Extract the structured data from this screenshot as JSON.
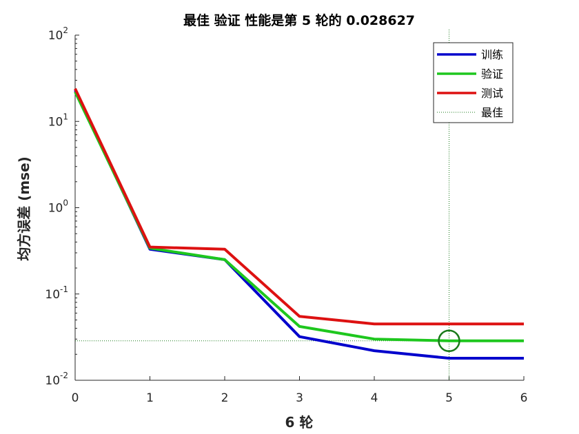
{
  "chart_data": {
    "type": "line",
    "title": "最佳 验证 性能是第 5 轮的 0.028627",
    "xlabel": "6 轮",
    "ylabel": "均方误差 (mse)",
    "xlim": [
      0,
      6
    ],
    "ylim": [
      0.01,
      100
    ],
    "yscale": "log",
    "grid": false,
    "legend_position": "top-right",
    "x": [
      0,
      1,
      2,
      3,
      4,
      5,
      6
    ],
    "x_tick_labels": [
      "0",
      "1",
      "2",
      "3",
      "4",
      "5",
      "6"
    ],
    "y_ticks": [
      {
        "value": 100,
        "base": "10",
        "exp": "2"
      },
      {
        "value": 10,
        "base": "10",
        "exp": "1"
      },
      {
        "value": 1,
        "base": "10",
        "exp": "0"
      },
      {
        "value": 0.1,
        "base": "10",
        "exp": "-1"
      },
      {
        "value": 0.01,
        "base": "10",
        "exp": "-2"
      }
    ],
    "series": [
      {
        "name": "训练",
        "color": "#0000cc",
        "values": [
          23,
          0.33,
          0.25,
          0.032,
          0.022,
          0.018,
          0.018
        ]
      },
      {
        "name": "验证",
        "color": "#1ec71e",
        "values": [
          22,
          0.34,
          0.25,
          0.042,
          0.03,
          0.028627,
          0.028627
        ]
      },
      {
        "name": "测试",
        "color": "#dd1111",
        "values": [
          24,
          0.35,
          0.33,
          0.055,
          0.045,
          0.045,
          0.045
        ]
      }
    ],
    "best": {
      "name": "最佳",
      "epoch": 5,
      "value": 0.028627,
      "color": "#1a7a1a"
    }
  }
}
